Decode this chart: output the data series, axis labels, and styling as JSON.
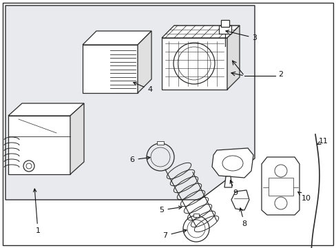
{
  "bg_color": "#ffffff",
  "line_color": "#2a2a2a",
  "text_color": "#111111",
  "shaded_color": "#e8eaed",
  "fig_width": 4.89,
  "fig_height": 3.6,
  "dpi": 100
}
